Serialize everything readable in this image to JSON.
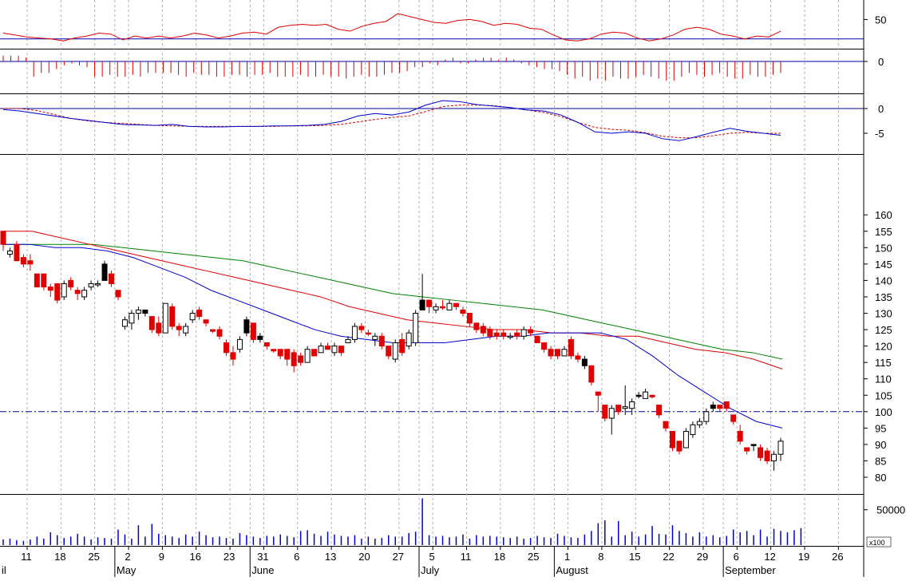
{
  "colors": {
    "up_candle": "#ffffff",
    "down_candle": "#e00000",
    "black_candle": "#000000",
    "ma_fast": "#0000cc",
    "ma_mid": "#dd0000",
    "ma_slow": "#008000",
    "grid": "#b0b0b0",
    "ref_line": "#0000a0",
    "volume": "#0000cc",
    "histogram": "#dd0000",
    "rsi": "#dd0000",
    "macd": "#0000cc",
    "signal": "#cc0000"
  },
  "chart_data": {
    "type": "candlestick",
    "grid": true,
    "x_ticks": [
      "11",
      "18",
      "25",
      "2",
      "9",
      "16",
      "23",
      "31",
      "6",
      "13",
      "20",
      "27",
      "5",
      "11",
      "18",
      "25",
      "1",
      "8",
      "15",
      "22",
      "29",
      "6",
      "12",
      "19",
      "26"
    ],
    "month_labels": [
      {
        "label": "il",
        "tick": -1
      },
      {
        "label": "May",
        "tick": 3
      },
      {
        "label": "June",
        "tick": 7
      },
      {
        "label": "July",
        "tick": 12
      },
      {
        "label": "August",
        "tick": 16
      },
      {
        "label": "September",
        "tick": 21
      }
    ],
    "price_axis": {
      "ticks": [
        80,
        85,
        90,
        95,
        100,
        105,
        110,
        115,
        120,
        125,
        130,
        135,
        140,
        145,
        150,
        155,
        160
      ],
      "ylim": [
        77,
        162
      ]
    },
    "reference_level": 100,
    "candles": [
      {
        "o": 155,
        "h": 155,
        "l": 149,
        "c": 151,
        "k": "down"
      },
      {
        "o": 149,
        "h": 150,
        "l": 147,
        "c": 148,
        "k": "up"
      },
      {
        "o": 151,
        "h": 152,
        "l": 146,
        "c": 146,
        "k": "down"
      },
      {
        "o": 147,
        "h": 148,
        "l": 144,
        "c": 145,
        "k": "down"
      },
      {
        "o": 146,
        "h": 148,
        "l": 143,
        "c": 145,
        "k": "down"
      },
      {
        "o": 142,
        "h": 142,
        "l": 138,
        "c": 138,
        "k": "down"
      },
      {
        "o": 142,
        "h": 142,
        "l": 137,
        "c": 138,
        "k": "down"
      },
      {
        "o": 138,
        "h": 139,
        "l": 135,
        "c": 137,
        "k": "down"
      },
      {
        "o": 139,
        "h": 139,
        "l": 133,
        "c": 134,
        "k": "down"
      },
      {
        "o": 135,
        "h": 140,
        "l": 134,
        "c": 139,
        "k": "up"
      },
      {
        "o": 140,
        "h": 141,
        "l": 137,
        "c": 138,
        "k": "down"
      },
      {
        "o": 137,
        "h": 138,
        "l": 134,
        "c": 136,
        "k": "down"
      },
      {
        "o": 135,
        "h": 138,
        "l": 134,
        "c": 137,
        "k": "up"
      },
      {
        "o": 138,
        "h": 140,
        "l": 137,
        "c": 139,
        "k": "up"
      },
      {
        "o": 139,
        "h": 140,
        "l": 138,
        "c": 139,
        "k": "up"
      },
      {
        "o": 140,
        "h": 146,
        "l": 140,
        "c": 145,
        "k": "black"
      },
      {
        "o": 142,
        "h": 143,
        "l": 138,
        "c": 139,
        "k": "down"
      },
      {
        "o": 137,
        "h": 137,
        "l": 134,
        "c": 135,
        "k": "down"
      },
      {
        "o": 126,
        "h": 129,
        "l": 125,
        "c": 128,
        "k": "up"
      },
      {
        "o": 127,
        "h": 131,
        "l": 125,
        "c": 130,
        "k": "up"
      },
      {
        "o": 130,
        "h": 132,
        "l": 128,
        "c": 131,
        "k": "up"
      },
      {
        "o": 131,
        "h": 131,
        "l": 129,
        "c": 130,
        "k": "black"
      },
      {
        "o": 129,
        "h": 129,
        "l": 124,
        "c": 125,
        "k": "down"
      },
      {
        "o": 127,
        "h": 129,
        "l": 123,
        "c": 124,
        "k": "down"
      },
      {
        "o": 124,
        "h": 133,
        "l": 124,
        "c": 133,
        "k": "up"
      },
      {
        "o": 132,
        "h": 133,
        "l": 125,
        "c": 126,
        "k": "down"
      },
      {
        "o": 126,
        "h": 127,
        "l": 123,
        "c": 125,
        "k": "down"
      },
      {
        "o": 124,
        "h": 127,
        "l": 123,
        "c": 126,
        "k": "up"
      },
      {
        "o": 128,
        "h": 131,
        "l": 127,
        "c": 130,
        "k": "up"
      },
      {
        "o": 131,
        "h": 132,
        "l": 128,
        "c": 129,
        "k": "down"
      },
      {
        "o": 128,
        "h": 128,
        "l": 126,
        "c": 127,
        "k": "down"
      },
      {
        "o": 125,
        "h": 125,
        "l": 124,
        "c": 124.5,
        "k": "down"
      },
      {
        "o": 125,
        "h": 126,
        "l": 122,
        "c": 123,
        "k": "down"
      },
      {
        "o": 121,
        "h": 122,
        "l": 117,
        "c": 118,
        "k": "down"
      },
      {
        "o": 118,
        "h": 120,
        "l": 114,
        "c": 116,
        "k": "down"
      },
      {
        "o": 119,
        "h": 123,
        "l": 118,
        "c": 122,
        "k": "up"
      },
      {
        "o": 124,
        "h": 129,
        "l": 123,
        "c": 128,
        "k": "black"
      },
      {
        "o": 127,
        "h": 127,
        "l": 121,
        "c": 122,
        "k": "down"
      },
      {
        "o": 123,
        "h": 124,
        "l": 121,
        "c": 122,
        "k": "black"
      },
      {
        "o": 121,
        "h": 121,
        "l": 119,
        "c": 120,
        "k": "down"
      },
      {
        "o": 119,
        "h": 119,
        "l": 118,
        "c": 118.5,
        "k": "down"
      },
      {
        "o": 119,
        "h": 119,
        "l": 116,
        "c": 117,
        "k": "down"
      },
      {
        "o": 119,
        "h": 119,
        "l": 114,
        "c": 116,
        "k": "down"
      },
      {
        "o": 118,
        "h": 119,
        "l": 112,
        "c": 114,
        "k": "down"
      },
      {
        "o": 117,
        "h": 118,
        "l": 114,
        "c": 115,
        "k": "down"
      },
      {
        "o": 115,
        "h": 120,
        "l": 115,
        "c": 119,
        "k": "up"
      },
      {
        "o": 119,
        "h": 119,
        "l": 117,
        "c": 117,
        "k": "down"
      },
      {
        "o": 118,
        "h": 121,
        "l": 118,
        "c": 120,
        "k": "up"
      },
      {
        "o": 120,
        "h": 121,
        "l": 119,
        "c": 119,
        "k": "down"
      },
      {
        "o": 118,
        "h": 121,
        "l": 117,
        "c": 120,
        "k": "up"
      },
      {
        "o": 120,
        "h": 120,
        "l": 117,
        "c": 118,
        "k": "down"
      },
      {
        "o": 121,
        "h": 123,
        "l": 121,
        "c": 122,
        "k": "up"
      },
      {
        "o": 122,
        "h": 127,
        "l": 121,
        "c": 126,
        "k": "up"
      },
      {
        "o": 126,
        "h": 127,
        "l": 124,
        "c": 125,
        "k": "down"
      },
      {
        "o": 124,
        "h": 125,
        "l": 123,
        "c": 124,
        "k": "down"
      },
      {
        "o": 122,
        "h": 124,
        "l": 120,
        "c": 123,
        "k": "up"
      },
      {
        "o": 123,
        "h": 124,
        "l": 119,
        "c": 120,
        "k": "down"
      },
      {
        "o": 120,
        "h": 120,
        "l": 116,
        "c": 117,
        "k": "down"
      },
      {
        "o": 116,
        "h": 122,
        "l": 115,
        "c": 121,
        "k": "up"
      },
      {
        "o": 122,
        "h": 124,
        "l": 117,
        "c": 118,
        "k": "down"
      },
      {
        "o": 120,
        "h": 125,
        "l": 119,
        "c": 124,
        "k": "up"
      },
      {
        "o": 121,
        "h": 131,
        "l": 120,
        "c": 130,
        "k": "up"
      },
      {
        "o": 131,
        "h": 142,
        "l": 131,
        "c": 134,
        "k": "black"
      },
      {
        "o": 134,
        "h": 134,
        "l": 130,
        "c": 132,
        "k": "down"
      },
      {
        "o": 131,
        "h": 133,
        "l": 130,
        "c": 132,
        "k": "up"
      },
      {
        "o": 132,
        "h": 134,
        "l": 131,
        "c": 132,
        "k": "down"
      },
      {
        "o": 131,
        "h": 134,
        "l": 131,
        "c": 133,
        "k": "up"
      },
      {
        "o": 133,
        "h": 133,
        "l": 131,
        "c": 132,
        "k": "down"
      },
      {
        "o": 131,
        "h": 132,
        "l": 129,
        "c": 130,
        "k": "down"
      },
      {
        "o": 130,
        "h": 130,
        "l": 126,
        "c": 127,
        "k": "down"
      },
      {
        "o": 127,
        "h": 127,
        "l": 124,
        "c": 125,
        "k": "down"
      },
      {
        "o": 126,
        "h": 127,
        "l": 123,
        "c": 124,
        "k": "down"
      },
      {
        "o": 125,
        "h": 126,
        "l": 122,
        "c": 123,
        "k": "down"
      },
      {
        "o": 124,
        "h": 125,
        "l": 122,
        "c": 123,
        "k": "down"
      },
      {
        "o": 124,
        "h": 125,
        "l": 122,
        "c": 123,
        "k": "down"
      },
      {
        "o": 123,
        "h": 124,
        "l": 122,
        "c": 123,
        "k": "up"
      },
      {
        "o": 124,
        "h": 125,
        "l": 122,
        "c": 123,
        "k": "down"
      },
      {
        "o": 123,
        "h": 126,
        "l": 122,
        "c": 125,
        "k": "up"
      },
      {
        "o": 125,
        "h": 126,
        "l": 123,
        "c": 124,
        "k": "down"
      },
      {
        "o": 123,
        "h": 123,
        "l": 121,
        "c": 121,
        "k": "down"
      },
      {
        "o": 121,
        "h": 121,
        "l": 118,
        "c": 119,
        "k": "down"
      },
      {
        "o": 119,
        "h": 120,
        "l": 116,
        "c": 117,
        "k": "down"
      },
      {
        "o": 119,
        "h": 119,
        "l": 116,
        "c": 117,
        "k": "down"
      },
      {
        "o": 117,
        "h": 120,
        "l": 117,
        "c": 119,
        "k": "up"
      },
      {
        "o": 122,
        "h": 123,
        "l": 116,
        "c": 117,
        "k": "down"
      },
      {
        "o": 117,
        "h": 118,
        "l": 115,
        "c": 116,
        "k": "down"
      },
      {
        "o": 114,
        "h": 117,
        "l": 113,
        "c": 116,
        "k": "black"
      },
      {
        "o": 114,
        "h": 114,
        "l": 108,
        "c": 109,
        "k": "down"
      },
      {
        "o": 106,
        "h": 106,
        "l": 100,
        "c": 105,
        "k": "down"
      },
      {
        "o": 102,
        "h": 102,
        "l": 97,
        "c": 98,
        "k": "down"
      },
      {
        "o": 98,
        "h": 102,
        "l": 93,
        "c": 101,
        "k": "up"
      },
      {
        "o": 102,
        "h": 102,
        "l": 99,
        "c": 100,
        "k": "down"
      },
      {
        "o": 101,
        "h": 108,
        "l": 99,
        "c": 101.5,
        "k": "up"
      },
      {
        "o": 101,
        "h": 104,
        "l": 99,
        "c": 103,
        "k": "up"
      },
      {
        "o": 105,
        "h": 106,
        "l": 104,
        "c": 105,
        "k": "black"
      },
      {
        "o": 104,
        "h": 107,
        "l": 104,
        "c": 106,
        "k": "up"
      },
      {
        "o": 105,
        "h": 105,
        "l": 104,
        "c": 104.5,
        "k": "down"
      },
      {
        "o": 102,
        "h": 102,
        "l": 98,
        "c": 99,
        "k": "down"
      },
      {
        "o": 97,
        "h": 97,
        "l": 94,
        "c": 95,
        "k": "down"
      },
      {
        "o": 94,
        "h": 94,
        "l": 88,
        "c": 89,
        "k": "down"
      },
      {
        "o": 91,
        "h": 91,
        "l": 87,
        "c": 88,
        "k": "down"
      },
      {
        "o": 89,
        "h": 95,
        "l": 89,
        "c": 94,
        "k": "up"
      },
      {
        "o": 93,
        "h": 97,
        "l": 92,
        "c": 96,
        "k": "up"
      },
      {
        "o": 96,
        "h": 98,
        "l": 95,
        "c": 97,
        "k": "up"
      },
      {
        "o": 97,
        "h": 101,
        "l": 96,
        "c": 100,
        "k": "up"
      },
      {
        "o": 101,
        "h": 103,
        "l": 100,
        "c": 102,
        "k": "black"
      },
      {
        "o": 102,
        "h": 102,
        "l": 100,
        "c": 101,
        "k": "down"
      },
      {
        "o": 103,
        "h": 103,
        "l": 100,
        "c": 101,
        "k": "down"
      },
      {
        "o": 99,
        "h": 99,
        "l": 96,
        "c": 97,
        "k": "down"
      },
      {
        "o": 94,
        "h": 96,
        "l": 90,
        "c": 91,
        "k": "down"
      },
      {
        "o": 89,
        "h": 89,
        "l": 87,
        "c": 88,
        "k": "down"
      },
      {
        "o": 90,
        "h": 90,
        "l": 88,
        "c": 90,
        "k": "black"
      },
      {
        "o": 89,
        "h": 90,
        "l": 85,
        "c": 86,
        "k": "down"
      },
      {
        "o": 88,
        "h": 89,
        "l": 84,
        "c": 85,
        "k": "down"
      },
      {
        "o": 85,
        "h": 88,
        "l": 82,
        "c": 87,
        "k": "up"
      },
      {
        "o": 87,
        "h": 92,
        "l": 85,
        "c": 91,
        "k": "up"
      }
    ],
    "ma_fast": [
      151,
      151,
      150,
      150,
      149,
      147,
      144,
      141,
      137,
      134,
      131,
      128,
      125,
      123,
      122,
      121,
      121,
      121,
      122,
      123,
      123,
      124,
      124,
      124,
      122,
      117,
      111,
      106,
      101,
      97,
      95
    ],
    "ma_mid": [
      155,
      155,
      153,
      151,
      149,
      147,
      145,
      143,
      141,
      139,
      137,
      135,
      132,
      130,
      128,
      127,
      126,
      125,
      125,
      124,
      124,
      123,
      123,
      121,
      119,
      118,
      116,
      113
    ],
    "ma_slow": [
      151,
      151,
      151,
      151,
      150,
      149,
      148,
      147,
      146,
      144,
      142,
      140,
      138,
      136,
      135,
      134,
      133,
      132,
      131,
      129,
      127,
      125,
      123,
      121,
      119,
      118,
      116
    ],
    "volume_axis": {
      "label": "50000",
      "multiplier": "x100",
      "max": 70000
    },
    "volume": [
      8000,
      9000,
      7000,
      6000,
      8000,
      12000,
      9000,
      18000,
      14000,
      10000,
      12000,
      16000,
      12000,
      8000,
      11000,
      10000,
      9000,
      22000,
      15000,
      9000,
      28000,
      12000,
      30000,
      16000,
      14000,
      12000,
      10000,
      15000,
      12000,
      19000,
      14000,
      11000,
      12000,
      10000,
      9000,
      17000,
      14000,
      12000,
      10000,
      13000,
      12000,
      15000,
      13000,
      11000,
      20000,
      21000,
      16000,
      13000,
      19000,
      15000,
      13000,
      12000,
      14000,
      9000,
      12000,
      9000,
      10000,
      14000,
      12000,
      12000,
      17000,
      19000,
      66000,
      14000,
      12000,
      13000,
      11000,
      12000,
      15000,
      9000,
      14000,
      12000,
      13000,
      12000,
      11000,
      10000,
      12000,
      9000,
      10000,
      13000,
      11000,
      10000,
      16000,
      13000,
      11000,
      10000,
      15000,
      20000,
      31000,
      35000,
      12000,
      34000,
      14000,
      19000,
      12000,
      15000,
      27000,
      16000,
      15000,
      28000,
      20000,
      17000,
      12000,
      18000,
      12000,
      14000,
      11000,
      13000,
      22000,
      18000,
      20000,
      14000,
      22000,
      12000,
      23000,
      20000,
      18000,
      21000,
      24000
    ],
    "rsi_axis": {
      "ticks": [
        50
      ],
      "reference": 30,
      "ylim": [
        20,
        70
      ]
    },
    "rsi": [
      36,
      34,
      32,
      31,
      30,
      28,
      31,
      33,
      36,
      35,
      29,
      33,
      31,
      33,
      31,
      33,
      36,
      34,
      31,
      33,
      36,
      37,
      35,
      42,
      44,
      45,
      44,
      45,
      40,
      38,
      43,
      46,
      48,
      56,
      53,
      50,
      47,
      46,
      49,
      50,
      48,
      44,
      46,
      45,
      41,
      40,
      34,
      29,
      28,
      30,
      35,
      37,
      36,
      31,
      28,
      30,
      34,
      40,
      42,
      40,
      35,
      33,
      30,
      33,
      32,
      38
    ],
    "hist_axis": {
      "ticks": [
        0
      ]
    },
    "histogram": [
      3,
      3,
      3,
      2,
      -8,
      -6,
      -6,
      -4,
      -2,
      -1,
      -2,
      -3,
      -8,
      -8,
      -7,
      -8,
      -8,
      -7,
      -8,
      -6,
      -6,
      -6,
      -6,
      -7,
      -8,
      -6,
      -7,
      -7,
      -8,
      -8,
      -7,
      -7,
      -8,
      -7,
      -7,
      -6,
      -8,
      -8,
      -8,
      -7,
      -8,
      -8,
      -7,
      -8,
      -8,
      -9,
      -8,
      -7,
      -8,
      -8,
      -7,
      -6,
      -6,
      -5,
      -3,
      -3,
      -1,
      -2,
      1,
      2,
      -1,
      -1,
      1,
      2,
      2,
      1,
      2,
      1,
      -1,
      -2,
      -3,
      -4,
      -4,
      -5,
      -7,
      -9,
      -8,
      -10,
      -9,
      -10,
      -8,
      -9,
      -9,
      -8,
      -7,
      -8,
      -9,
      -10,
      -10,
      -8,
      -6,
      -7,
      -8,
      -7,
      -6,
      -8,
      -9,
      -9,
      -7,
      -8,
      -8,
      -7,
      -6
    ],
    "macd_axis": {
      "ticks": [
        0,
        -5
      ],
      "ylim": [
        -8,
        2
      ]
    },
    "macd": [
      -0.2,
      -0.5,
      -1,
      -1.5,
      -2,
      -2.4,
      -2.8,
      -3.2,
      -3.3,
      -3.4,
      -3.2,
      -3.6,
      -3.7,
      -3.7,
      -3.6,
      -3.6,
      -3.5,
      -3.5,
      -3.4,
      -3.2,
      -2.6,
      -1.5,
      -1,
      -1.3,
      -0.7,
      0.7,
      1.6,
      1.4,
      0.8,
      0.5,
      0.2,
      -0.3,
      -0.5,
      -1.3,
      -2.8,
      -4.7,
      -5,
      -4.7,
      -5,
      -6.1,
      -6.5,
      -5.7,
      -4.8,
      -4,
      -4.6,
      -5,
      -5.4
    ],
    "signal": [
      0,
      0,
      -0.4,
      -1.2,
      -2,
      -2.5,
      -2.8,
      -3,
      -3.2,
      -3.4,
      -3.5,
      -3.6,
      -3.6,
      -3.6,
      -3.6,
      -3.6,
      -3.6,
      -3.5,
      -3.5,
      -3.4,
      -3.2,
      -2.7,
      -2.2,
      -1.8,
      -1.5,
      -0.6,
      0.4,
      0.7,
      0.7,
      0.6,
      0.2,
      -0.3,
      -0.8,
      -1.6,
      -2.8,
      -3.8,
      -4.2,
      -4.4,
      -4.9,
      -5.6,
      -5.9,
      -5.9,
      -5.5,
      -5,
      -4.8,
      -5,
      -5
    ]
  }
}
